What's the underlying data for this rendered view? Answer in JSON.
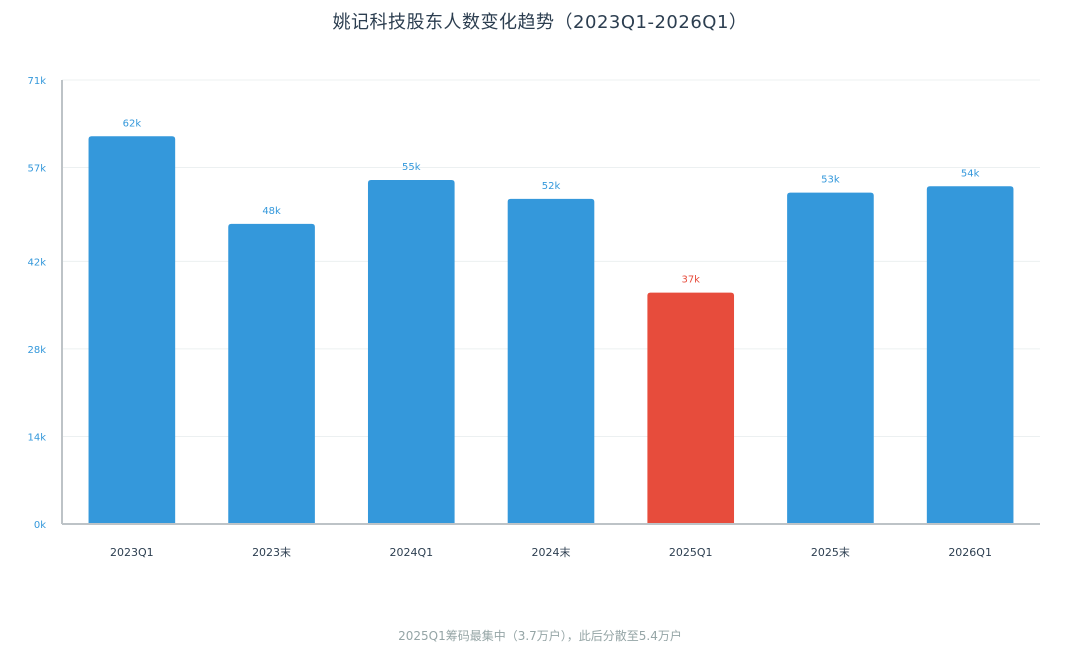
{
  "chart_data": {
    "type": "bar",
    "title": "姚记科技股东人数变化趋势（2023Q1-2026Q1）",
    "categories": [
      "2023Q1",
      "2023末",
      "2024Q1",
      "2024末",
      "2025Q1",
      "2025末",
      "2026Q1"
    ],
    "values": [
      62000,
      48000,
      55000,
      52000,
      37000,
      53000,
      54000
    ],
    "data_labels": [
      "62k",
      "48k",
      "55k",
      "52k",
      "37k",
      "53k",
      "54k"
    ],
    "highlight_index": 4,
    "ylim": [
      0,
      71000
    ],
    "yticks": [
      0,
      14000,
      28000,
      42000,
      57000,
      71000
    ],
    "ytick_labels": [
      "0k",
      "14k",
      "28k",
      "42k",
      "57k",
      "71k"
    ],
    "xlabel": "",
    "ylabel": "",
    "grid": true,
    "colors": {
      "bar": "#3498db",
      "highlight": "#e74c3c",
      "value_label": "#3498db",
      "highlight_label": "#e74c3c",
      "axis": "#bdc3c7",
      "grid": "#ecf0f1",
      "tick_label": "#3498db",
      "category_label": "#2c3e50"
    },
    "footnote": "2025Q1筹码最集中（3.7万户），此后分散至5.4万户"
  }
}
